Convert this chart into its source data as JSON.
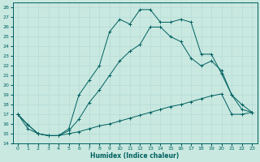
{
  "xlabel": "Humidex (Indice chaleur)",
  "ylabel": "",
  "bg_color": "#c8e8e0",
  "line_color": "#006060",
  "grid_color": "#b8ddd8",
  "xlim": [
    -0.5,
    23.5
  ],
  "ylim": [
    14,
    28.5
  ],
  "xticks": [
    0,
    1,
    2,
    3,
    4,
    5,
    6,
    7,
    8,
    9,
    10,
    11,
    12,
    13,
    14,
    15,
    16,
    17,
    18,
    19,
    20,
    21,
    22,
    23
  ],
  "yticks": [
    14,
    15,
    16,
    17,
    18,
    19,
    20,
    21,
    22,
    23,
    24,
    25,
    26,
    27,
    28
  ],
  "line1_x": [
    0,
    1,
    2,
    3,
    4,
    5,
    6,
    7,
    8,
    9,
    10,
    11,
    12,
    13,
    14,
    15,
    16,
    17,
    18,
    19,
    20,
    21,
    22,
    23
  ],
  "line1_y": [
    17.0,
    15.9,
    15.0,
    14.8,
    14.8,
    15.5,
    19.0,
    20.5,
    22.0,
    25.5,
    26.8,
    26.3,
    27.8,
    27.8,
    26.5,
    26.5,
    26.8,
    26.5,
    23.2,
    23.2,
    21.2,
    19.0,
    17.5,
    17.2
  ],
  "line2_x": [
    0,
    1,
    2,
    3,
    4,
    5,
    6,
    7,
    8,
    9,
    10,
    11,
    12,
    13,
    14,
    15,
    16,
    17,
    18,
    19,
    20,
    21,
    22,
    23
  ],
  "line2_y": [
    17.0,
    15.9,
    15.0,
    14.8,
    14.8,
    15.3,
    16.5,
    18.2,
    19.5,
    21.0,
    22.5,
    23.5,
    24.2,
    26.0,
    26.0,
    25.0,
    24.5,
    22.8,
    22.0,
    22.5,
    21.5,
    19.0,
    18.0,
    17.2
  ],
  "line3_x": [
    0,
    1,
    2,
    3,
    4,
    5,
    6,
    7,
    8,
    9,
    10,
    11,
    12,
    13,
    14,
    15,
    16,
    17,
    18,
    19,
    20,
    21,
    22,
    23
  ],
  "line3_y": [
    17.0,
    15.5,
    15.0,
    14.8,
    14.8,
    15.0,
    15.2,
    15.5,
    15.8,
    16.0,
    16.3,
    16.6,
    16.9,
    17.2,
    17.5,
    17.8,
    18.0,
    18.3,
    18.6,
    18.9,
    19.1,
    17.0,
    17.0,
    17.2
  ]
}
